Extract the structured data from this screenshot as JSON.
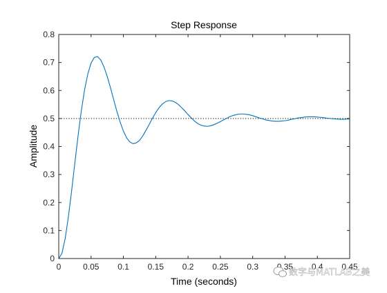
{
  "chart_data": {
    "type": "line",
    "title": "Step Response",
    "xlabel": "Time (seconds)",
    "ylabel": "Amplitude",
    "xlim": [
      0,
      0.45
    ],
    "ylim": [
      0,
      0.8
    ],
    "xticks": [
      0,
      0.05,
      0.1,
      0.15,
      0.2,
      0.25,
      0.3,
      0.35,
      0.4,
      0.45
    ],
    "xtick_labels": [
      "0",
      "0.05",
      "0.1",
      "0.15",
      "0.2",
      "0.25",
      "0.3",
      "0.35",
      "0.4",
      "0.45"
    ],
    "yticks": [
      0,
      0.1,
      0.2,
      0.3,
      0.4,
      0.5,
      0.6,
      0.7,
      0.8
    ],
    "ytick_labels": [
      "0",
      "0.1",
      "0.2",
      "0.3",
      "0.4",
      "0.5",
      "0.6",
      "0.7",
      "0.8"
    ],
    "grid": false,
    "line_color": "#0072BD",
    "reference_line": {
      "y": 0.5,
      "style": "dotted",
      "color": "#000000"
    },
    "series": [
      {
        "x": [
          0,
          0.005,
          0.01,
          0.015,
          0.02,
          0.025,
          0.03,
          0.035,
          0.04,
          0.045,
          0.05,
          0.055,
          0.06,
          0.065,
          0.07,
          0.075,
          0.08,
          0.085,
          0.09,
          0.095,
          0.1,
          0.105,
          0.11,
          0.115,
          0.12,
          0.125,
          0.13,
          0.135,
          0.14,
          0.145,
          0.15,
          0.155,
          0.16,
          0.165,
          0.17,
          0.175,
          0.18,
          0.185,
          0.19,
          0.195,
          0.2,
          0.205,
          0.21,
          0.215,
          0.22,
          0.225,
          0.23,
          0.235,
          0.24,
          0.245,
          0.25,
          0.255,
          0.26,
          0.265,
          0.27,
          0.275,
          0.28,
          0.285,
          0.29,
          0.295,
          0.3,
          0.305,
          0.31,
          0.315,
          0.32,
          0.325,
          0.33,
          0.335,
          0.34,
          0.345,
          0.35,
          0.355,
          0.36,
          0.365,
          0.37,
          0.375,
          0.38,
          0.385,
          0.39,
          0.395,
          0.4,
          0.405,
          0.41,
          0.415,
          0.42,
          0.425,
          0.43,
          0.435,
          0.44,
          0.445,
          0.45
        ],
        "values": [
          0,
          0.019,
          0.072,
          0.15,
          0.243,
          0.343,
          0.44,
          0.529,
          0.603,
          0.659,
          0.698,
          0.718,
          0.721,
          0.709,
          0.684,
          0.65,
          0.61,
          0.567,
          0.525,
          0.487,
          0.455,
          0.431,
          0.416,
          0.41,
          0.413,
          0.422,
          0.438,
          0.458,
          0.479,
          0.501,
          0.521,
          0.538,
          0.551,
          0.56,
          0.564,
          0.563,
          0.558,
          0.55,
          0.539,
          0.527,
          0.514,
          0.502,
          0.491,
          0.482,
          0.476,
          0.473,
          0.472,
          0.474,
          0.478,
          0.483,
          0.489,
          0.495,
          0.501,
          0.507,
          0.511,
          0.514,
          0.516,
          0.516,
          0.515,
          0.513,
          0.51,
          0.506,
          0.502,
          0.499,
          0.495,
          0.493,
          0.491,
          0.49,
          0.49,
          0.491,
          0.492,
          0.494,
          0.497,
          0.499,
          0.502,
          0.503,
          0.505,
          0.506,
          0.506,
          0.506,
          0.505,
          0.504,
          0.503,
          0.501,
          0.5,
          0.499,
          0.498,
          0.497,
          0.497,
          0.498,
          0.498
        ]
      }
    ]
  },
  "watermark": {
    "text": "数字与MATLAB之美",
    "icon": "wechat-icon"
  }
}
